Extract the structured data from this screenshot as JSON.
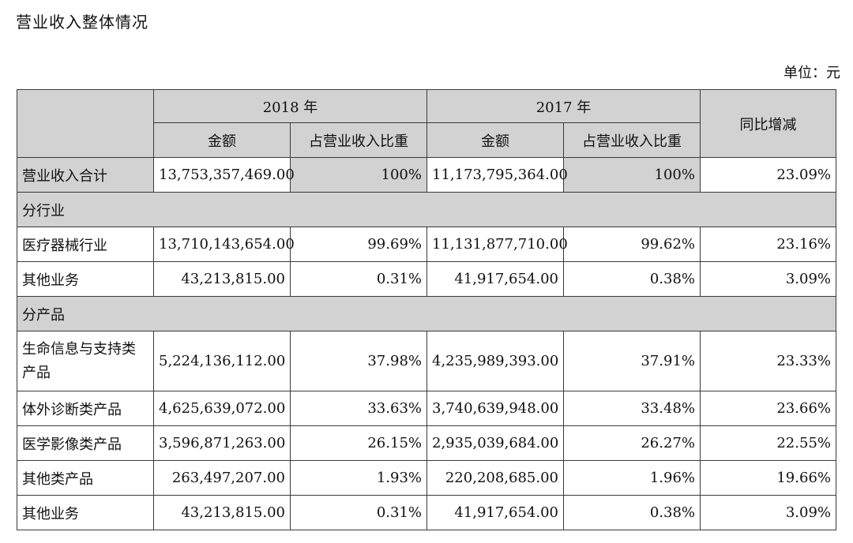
{
  "title": "营业收入整体情况",
  "unit": "单位：元",
  "header": {
    "year_2018": "2018 年",
    "year_2017": "2017 年",
    "yoy_change": "同比增减",
    "amount": "金额",
    "share": "占营业收入比重"
  },
  "total_row": {
    "label": "营业收入合计",
    "amount_2018": "13,753,357,469.00",
    "share_2018": "100%",
    "amount_2017": "11,173,795,364.00",
    "share_2017": "100%",
    "yoy": "23.09%"
  },
  "sections": [
    {
      "title": "分行业",
      "rows": [
        {
          "label": "医疗器械行业",
          "amount_2018": "13,710,143,654.00",
          "share_2018": "99.69%",
          "amount_2017": "11,131,877,710.00",
          "share_2017": "99.62%",
          "yoy": "23.16%"
        },
        {
          "label": "其他业务",
          "amount_2018": "43,213,815.00",
          "share_2018": "0.31%",
          "amount_2017": "41,917,654.00",
          "share_2017": "0.38%",
          "yoy": "3.09%"
        }
      ]
    },
    {
      "title": "分产品",
      "rows": [
        {
          "label": "生命信息与支持类产品",
          "amount_2018": "5,224,136,112.00",
          "share_2018": "37.98%",
          "amount_2017": "4,235,989,393.00",
          "share_2017": "37.91%",
          "yoy": "23.33%"
        },
        {
          "label": "体外诊断类产品",
          "amount_2018": "4,625,639,072.00",
          "share_2018": "33.63%",
          "amount_2017": "3,740,639,948.00",
          "share_2017": "33.48%",
          "yoy": "23.66%"
        },
        {
          "label": "医学影像类产品",
          "amount_2018": "3,596,871,263.00",
          "share_2018": "26.15%",
          "amount_2017": "2,935,039,684.00",
          "share_2017": "26.27%",
          "yoy": "22.55%"
        },
        {
          "label": "其他类产品",
          "amount_2018": "263,497,207.00",
          "share_2018": "1.93%",
          "amount_2017": "220,208,685.00",
          "share_2017": "1.96%",
          "yoy": "19.66%"
        },
        {
          "label": "其他业务",
          "amount_2018": "43,213,815.00",
          "share_2018": "0.31%",
          "amount_2017": "41,917,654.00",
          "share_2017": "0.38%",
          "yoy": "3.09%"
        }
      ]
    }
  ]
}
